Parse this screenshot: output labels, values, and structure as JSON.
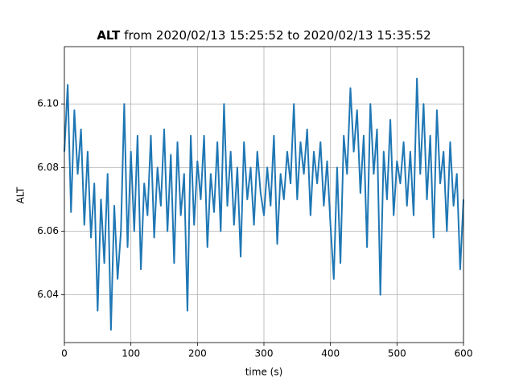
{
  "chart_data": {
    "type": "line",
    "title": {
      "name": "ALT",
      "text": "from 2020/02/13 15:25:52 to 2020/02/13 15:35:52"
    },
    "xlabel": "time (s)",
    "ylabel": "ALT",
    "x": [
      0,
      5,
      10,
      15,
      20,
      25,
      30,
      35,
      40,
      45,
      50,
      55,
      60,
      65,
      70,
      75,
      80,
      85,
      90,
      95,
      100,
      105,
      110,
      115,
      120,
      125,
      130,
      135,
      140,
      145,
      150,
      155,
      160,
      165,
      170,
      175,
      180,
      185,
      190,
      195,
      200,
      205,
      210,
      215,
      220,
      225,
      230,
      235,
      240,
      245,
      250,
      255,
      260,
      265,
      270,
      275,
      280,
      285,
      290,
      295,
      300,
      305,
      310,
      315,
      320,
      325,
      330,
      335,
      340,
      345,
      350,
      355,
      360,
      365,
      370,
      375,
      380,
      385,
      390,
      395,
      400,
      405,
      410,
      415,
      420,
      425,
      430,
      435,
      440,
      445,
      450,
      455,
      460,
      465,
      470,
      475,
      480,
      485,
      490,
      495,
      500,
      505,
      510,
      515,
      520,
      525,
      530,
      535,
      540,
      545,
      550,
      555,
      560,
      565,
      570,
      575,
      580,
      585,
      590,
      595,
      600
    ],
    "values": [
      6.085,
      6.106,
      6.066,
      6.098,
      6.078,
      6.092,
      6.062,
      6.085,
      6.058,
      6.075,
      6.035,
      6.07,
      6.05,
      6.078,
      6.029,
      6.068,
      6.045,
      6.06,
      6.1,
      6.055,
      6.085,
      6.06,
      6.09,
      6.048,
      6.075,
      6.065,
      6.09,
      6.058,
      6.08,
      6.068,
      6.092,
      6.06,
      6.084,
      6.05,
      6.088,
      6.065,
      6.078,
      6.035,
      6.09,
      6.062,
      6.082,
      6.07,
      6.09,
      6.055,
      6.078,
      6.066,
      6.088,
      6.06,
      6.1,
      6.068,
      6.085,
      6.062,
      6.08,
      6.052,
      6.088,
      6.07,
      6.08,
      6.062,
      6.085,
      6.072,
      6.065,
      6.08,
      6.068,
      6.09,
      6.056,
      6.078,
      6.07,
      6.085,
      6.075,
      6.1,
      6.07,
      6.088,
      6.078,
      6.092,
      6.065,
      6.085,
      6.075,
      6.088,
      6.068,
      6.082,
      6.062,
      6.045,
      6.08,
      6.05,
      6.09,
      6.078,
      6.105,
      6.085,
      6.098,
      6.072,
      6.09,
      6.055,
      6.1,
      6.078,
      6.092,
      6.04,
      6.085,
      6.07,
      6.095,
      6.065,
      6.082,
      6.075,
      6.088,
      6.068,
      6.085,
      6.065,
      6.108,
      6.078,
      6.1,
      6.07,
      6.09,
      6.058,
      6.098,
      6.075,
      6.085,
      6.06,
      6.088,
      6.068,
      6.078,
      6.048,
      6.07
    ],
    "color": "#1f77b4",
    "xlim": [
      0,
      600
    ],
    "xticks": [
      0,
      100,
      200,
      300,
      400,
      500,
      600
    ],
    "ylim": [
      6.025,
      6.118
    ],
    "yticks": [
      6.04,
      6.06,
      6.08,
      {
        "value": 6.1,
        "label": "6.10"
      }
    ],
    "grid": true
  }
}
